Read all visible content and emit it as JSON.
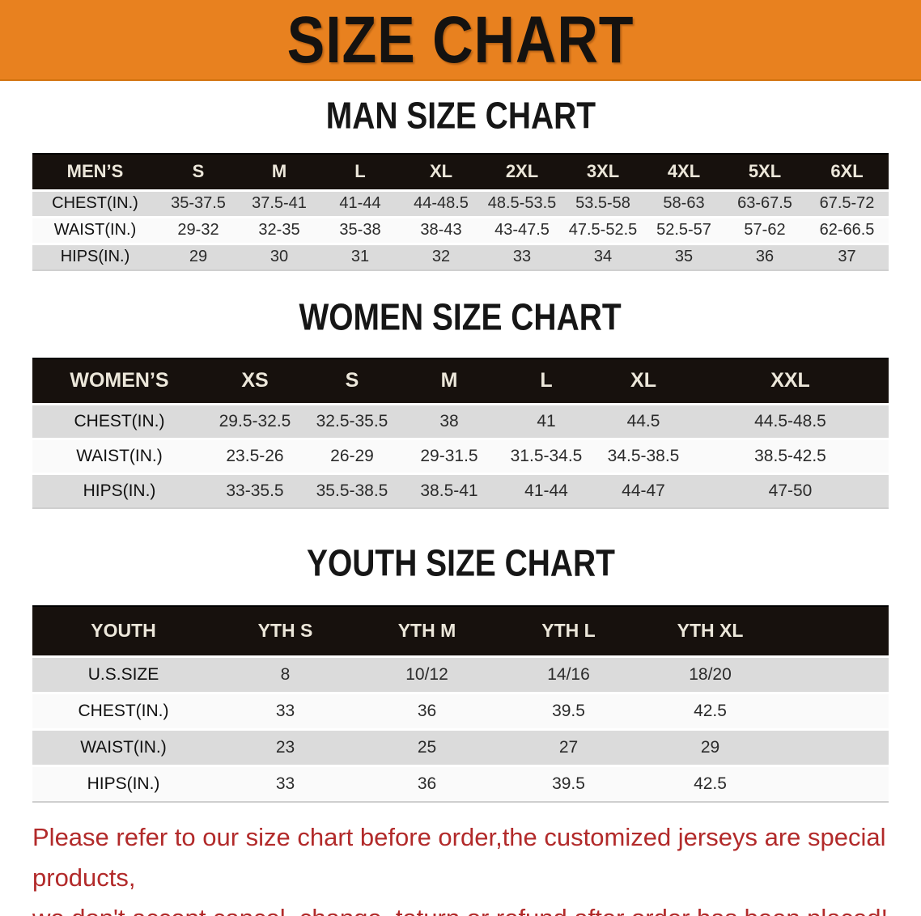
{
  "banner": {
    "title": "SIZE CHART"
  },
  "sections": [
    {
      "title": "MAN SIZE CHART",
      "header_label": "MEN’S",
      "columns": [
        "S",
        "M",
        "L",
        "XL",
        "2XL",
        "3XL",
        "4XL",
        "5XL",
        "6XL"
      ],
      "rows": [
        {
          "label": "CHEST(IN.)",
          "values": [
            "35-37.5",
            "37.5-41",
            "41-44",
            "44-48.5",
            "48.5-53.5",
            "53.5-58",
            "58-63",
            "63-67.5",
            "67.5-72"
          ]
        },
        {
          "label": "WAIST(IN.)",
          "values": [
            "29-32",
            "32-35",
            "35-38",
            "38-43",
            "43-47.5",
            "47.5-52.5",
            "52.5-57",
            "57-62",
            "62-66.5"
          ]
        },
        {
          "label": "HIPS(IN.)",
          "values": [
            "29",
            "30",
            "31",
            "32",
            "33",
            "34",
            "35",
            "36",
            "37"
          ]
        }
      ]
    },
    {
      "title": "WOMEN SIZE CHART",
      "header_label": "WOMEN’S",
      "columns": [
        "XS",
        "S",
        "M",
        "L",
        "XL",
        "XXL"
      ],
      "rows": [
        {
          "label": "CHEST(IN.)",
          "values": [
            "29.5-32.5",
            "32.5-35.5",
            "38",
            "41",
            "44.5",
            "44.5-48.5"
          ]
        },
        {
          "label": "WAIST(IN.)",
          "values": [
            "23.5-26",
            "26-29",
            "29-31.5",
            "31.5-34.5",
            "34.5-38.5",
            "38.5-42.5"
          ]
        },
        {
          "label": "HIPS(IN.)",
          "values": [
            "33-35.5",
            "35.5-38.5",
            "38.5-41",
            "41-44",
            "44-47",
            "47-50"
          ]
        }
      ]
    },
    {
      "title": "YOUTH SIZE CHART",
      "header_label": "YOUTH",
      "columns": [
        "YTH S",
        "YTH M",
        "YTH L",
        "YTH XL"
      ],
      "rows": [
        {
          "label": "U.S.SIZE",
          "values": [
            "8",
            "10/12",
            "14/16",
            "18/20"
          ]
        },
        {
          "label": "CHEST(IN.)",
          "values": [
            "33",
            "36",
            "39.5",
            "42.5"
          ]
        },
        {
          "label": "WAIST(IN.)",
          "values": [
            "23",
            "25",
            "27",
            "29"
          ]
        },
        {
          "label": "HIPS(IN.)",
          "values": [
            "33",
            "36",
            "39.5",
            "42.5"
          ]
        }
      ]
    }
  ],
  "disclaimer": {
    "line1": "Please refer to our size chart before order,the customized jerseys are special products,",
    "line2": "we don't accept cancel, change, teturn or refund after order has been placed!"
  },
  "colors": {
    "banner_background": "#E8811F",
    "banner_text": "#141210",
    "table_header_background": "#17110D",
    "table_header_text": "#FFFFFF",
    "table_row_dark": "#DBDBDB",
    "table_row_light": "#FAFAFA",
    "disclaimer_text": "#B22A2A"
  }
}
